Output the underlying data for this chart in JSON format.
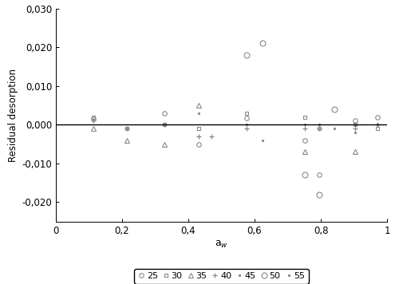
{
  "series": {
    "25": {
      "x": [
        0.113,
        0.328,
        0.432,
        0.575,
        0.753,
        0.795,
        0.903,
        0.972
      ],
      "y": [
        0.0015,
        0.003,
        -0.005,
        0.0018,
        -0.004,
        -0.013,
        0.001,
        0.002
      ]
    },
    "30": {
      "x": [
        0.113,
        0.215,
        0.328,
        0.432,
        0.575,
        0.753,
        0.795,
        0.903,
        0.972
      ],
      "y": [
        0.002,
        -0.001,
        0.0,
        -0.001,
        0.003,
        0.002,
        -0.001,
        0.0,
        -0.001
      ]
    },
    "35": {
      "x": [
        0.113,
        0.215,
        0.328,
        0.432,
        0.753,
        0.903
      ],
      "y": [
        -0.001,
        -0.004,
        -0.005,
        0.005,
        -0.007,
        -0.007
      ]
    },
    "40": {
      "x": [
        0.113,
        0.215,
        0.328,
        0.432,
        0.47,
        0.575,
        0.753,
        0.795,
        0.903,
        0.972
      ],
      "y": [
        0.001,
        -0.001,
        0.0,
        -0.003,
        -0.003,
        -0.001,
        -0.001,
        -0.001,
        -0.001,
        0.0
      ]
    },
    "45": {
      "x": [
        0.113,
        0.215,
        0.328,
        0.432,
        0.575,
        0.623,
        0.753,
        0.795,
        0.903,
        0.972
      ],
      "y": [
        0.001,
        -0.001,
        0.0,
        0.003,
        0.0,
        -0.004,
        0.0,
        0.0,
        0.0,
        0.0
      ]
    },
    "50": {
      "x": [
        0.575,
        0.623,
        0.753,
        0.795,
        0.84
      ],
      "y": [
        0.018,
        0.021,
        -0.013,
        -0.018,
        0.004
      ]
    },
    "55": {
      "x": [
        0.795,
        0.84,
        0.903,
        0.972
      ],
      "y": [
        0.0,
        -0.001,
        -0.002,
        0.0
      ]
    }
  },
  "xlabel": "a_w",
  "ylabel": "Residual desorption",
  "xlim": [
    0,
    1
  ],
  "ylim": [
    -0.025,
    0.03
  ],
  "yticks": [
    -0.02,
    -0.01,
    0.0,
    0.01,
    0.02,
    0.03
  ],
  "xticks": [
    0,
    0.2,
    0.4,
    0.6,
    0.8,
    1
  ],
  "xtick_labels": [
    "0",
    "0,2",
    "0,4",
    "0,6",
    "0,8",
    "1"
  ],
  "ytick_labels": [
    "-0,020",
    "-0,010",
    "0,000",
    "0,010",
    "0,020",
    "0,030"
  ],
  "legend_labels": [
    "25",
    "30",
    "35",
    "40",
    "45",
    "50",
    "55"
  ],
  "hline_y": 0.0,
  "background_color": "#ffffff",
  "marker_color": "#888888"
}
